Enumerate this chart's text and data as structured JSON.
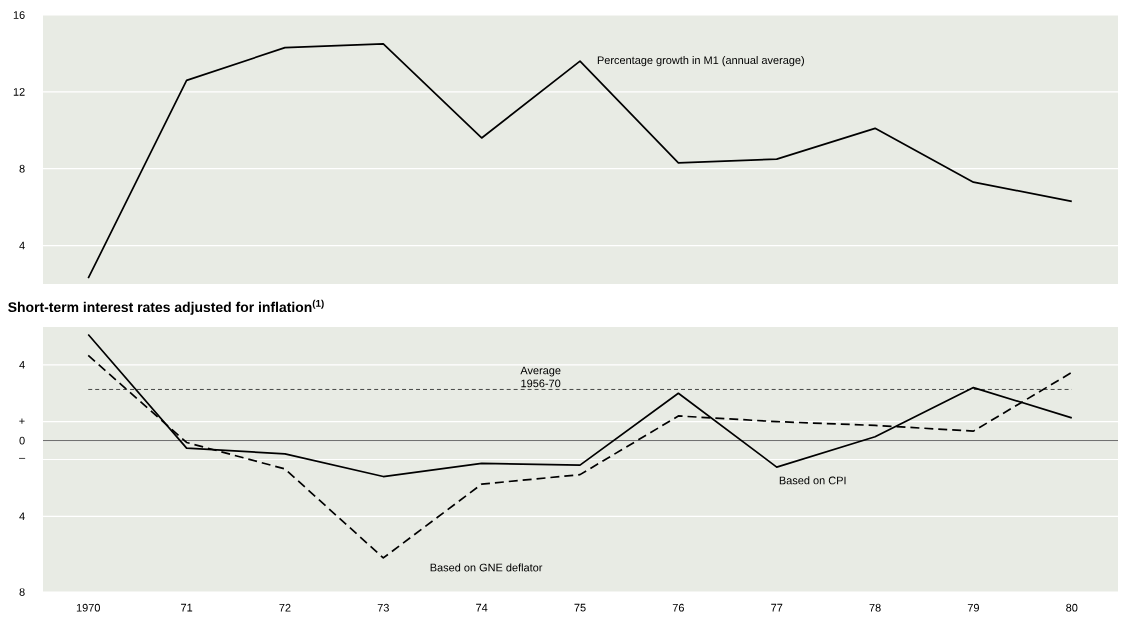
{
  "chart_data": [
    {
      "type": "line",
      "categories": [
        "1970",
        "71",
        "72",
        "73",
        "74",
        "75",
        "76",
        "77",
        "78",
        "79",
        "80"
      ],
      "series": [
        {
          "name": "Percentage growth in M1 (annual average)",
          "color": "#000000",
          "line_style": "solid",
          "values": [
            2.3,
            12.6,
            14.3,
            14.5,
            9.6,
            13.6,
            8.3,
            8.5,
            10.1,
            7.3,
            6.3
          ]
        }
      ],
      "ylim": [
        2,
        16
      ],
      "yticks": [
        4,
        8,
        12,
        16
      ],
      "grid": "y",
      "tick_labels": "y"
    },
    {
      "type": "line",
      "title": "Short-term interest rates adjusted for inflation$^{(1)}$",
      "categories": [
        "1970",
        "71",
        "72",
        "73",
        "74",
        "75",
        "76",
        "77",
        "78",
        "79",
        "80"
      ],
      "series": [
        {
          "name": "Based on CPI",
          "color": "#000000",
          "line_style": "solid",
          "values": [
            5.6,
            -0.4,
            -0.7,
            -1.9,
            -1.2,
            -1.3,
            2.5,
            -1.4,
            0.2,
            2.8,
            1.2
          ]
        },
        {
          "name": "Based on GNE deflator",
          "color": "#000000",
          "line_style": "dashed",
          "values": [
            4.5,
            -0.1,
            -1.5,
            -6.2,
            -2.3,
            -1.8,
            1.3,
            1.0,
            0.8,
            0.5,
            3.6
          ]
        }
      ],
      "ylim": [
        -8,
        6
      ],
      "yticks": [
        {
          "value": -8,
          "label": "8"
        },
        {
          "value": -4,
          "label": "4"
        },
        {
          "value": -1,
          "label": "–"
        },
        0,
        {
          "value": 1,
          "label": "+"
        },
        4
      ],
      "ref_lines": [
        {
          "axis": "y",
          "value": 0,
          "line_style": "solid"
        },
        {
          "axis": "y",
          "value": 2.7,
          "label": "Average 1956-70",
          "line_style": "dashed"
        }
      ],
      "grid": "y"
    }
  ]
}
